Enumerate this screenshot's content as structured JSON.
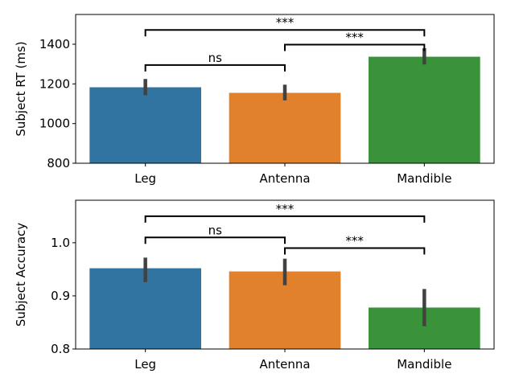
{
  "chart_data": [
    {
      "type": "bar",
      "categories": [
        "Leg",
        "Antenna",
        "Mandible"
      ],
      "values": [
        1183,
        1155,
        1337
      ],
      "error_bars": [
        [
          1143,
          1225
        ],
        [
          1117,
          1196
        ],
        [
          1298,
          1380
        ]
      ],
      "colors": [
        "#3274a1",
        "#e1812c",
        "#3a923a"
      ],
      "xlabel": "",
      "ylabel": "Subject RT (ms)",
      "ylim": [
        800,
        1550
      ],
      "yticks": [
        "800",
        "1000",
        "1200",
        "1400"
      ],
      "grid": false,
      "annotations": [
        {
          "from": "Leg",
          "to": "Antenna",
          "y": 1295,
          "label": "ns"
        },
        {
          "from": "Antenna",
          "to": "Mandible",
          "y": 1398,
          "label": "***"
        },
        {
          "from": "Leg",
          "to": "Mandible",
          "y": 1472,
          "label": "***"
        }
      ]
    },
    {
      "type": "bar",
      "categories": [
        "Leg",
        "Antenna",
        "Mandible"
      ],
      "values": [
        0.952,
        0.946,
        0.878
      ],
      "error_bars": [
        [
          0.926,
          0.972
        ],
        [
          0.92,
          0.97
        ],
        [
          0.843,
          0.913
        ]
      ],
      "colors": [
        "#3274a1",
        "#e1812c",
        "#3a923a"
      ],
      "xlabel": "",
      "ylabel": "Subject Accuracy",
      "ylim": [
        0.8,
        1.08
      ],
      "yticks": [
        "0.8",
        "0.9",
        "1.0"
      ],
      "grid": false,
      "annotations": [
        {
          "from": "Leg",
          "to": "Antenna",
          "y": 1.01,
          "label": "ns"
        },
        {
          "from": "Antenna",
          "to": "Mandible",
          "y": 0.99,
          "label": "***"
        },
        {
          "from": "Leg",
          "to": "Mandible",
          "y": 1.05,
          "label": "***"
        }
      ]
    }
  ]
}
